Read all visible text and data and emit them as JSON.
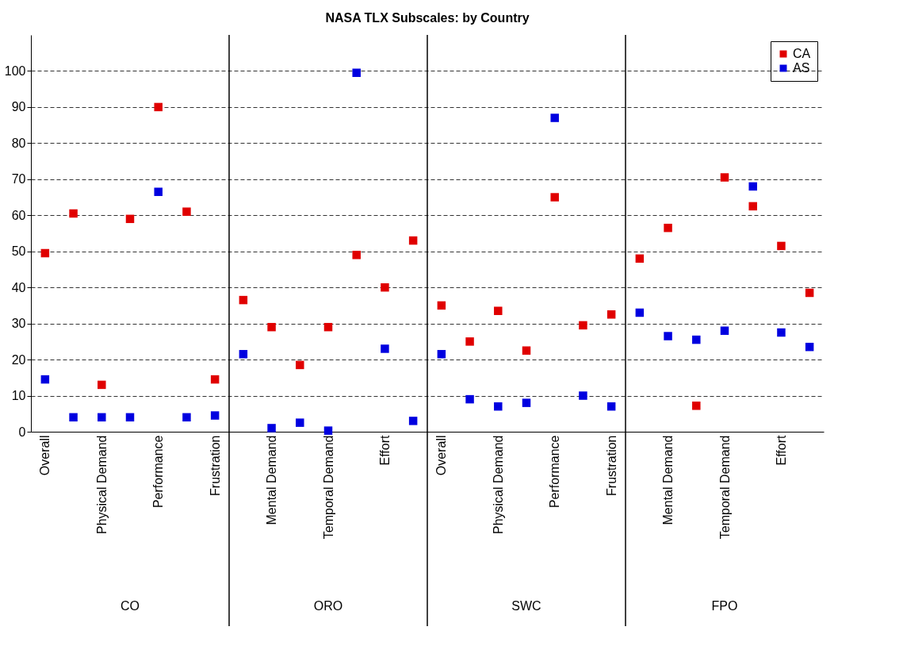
{
  "chart_data": {
    "type": "scatter",
    "title": "NASA TLX Subscales: by Country",
    "categories": [
      "Overall",
      null,
      "Physical Demand",
      null,
      "Performance",
      null,
      "Frustration",
      null,
      "Mental Demand",
      null,
      "Temporal Demand",
      null,
      "Effort",
      null,
      "Overall",
      null,
      "Physical Demand",
      null,
      "Performance",
      null,
      "Frustration",
      null,
      "Mental Demand",
      null,
      "Temporal Demand",
      null,
      "Effort",
      null
    ],
    "series": [
      {
        "name": "CA",
        "color": "#e00000",
        "values": [
          49.5,
          60.5,
          13,
          59,
          90,
          61,
          14.5,
          36.5,
          29,
          18.5,
          29,
          49,
          40,
          53,
          35,
          25,
          33.5,
          22.5,
          65,
          29.5,
          32.5,
          48,
          56.5,
          7.2,
          70.5,
          62.5,
          51.5,
          38.5
        ]
      },
      {
        "name": "AS",
        "color": "#0000e0",
        "values": [
          14.5,
          4,
          4,
          4,
          66.5,
          4,
          4.5,
          21.5,
          1,
          2.5,
          0.3,
          99.5,
          23,
          3,
          21.5,
          9,
          7,
          8,
          87,
          10,
          7,
          33,
          26.5,
          25.5,
          28,
          68,
          27.5,
          23.5
        ]
      }
    ],
    "annotations": [
      "CO",
      "ORO",
      "SWC",
      "FPO"
    ],
    "ylim": [
      0,
      110
    ],
    "yticks": [
      0,
      10,
      20,
      30,
      40,
      50,
      60,
      70,
      80,
      90,
      100
    ],
    "grid": "y",
    "marker": "square",
    "legend": "top right"
  }
}
